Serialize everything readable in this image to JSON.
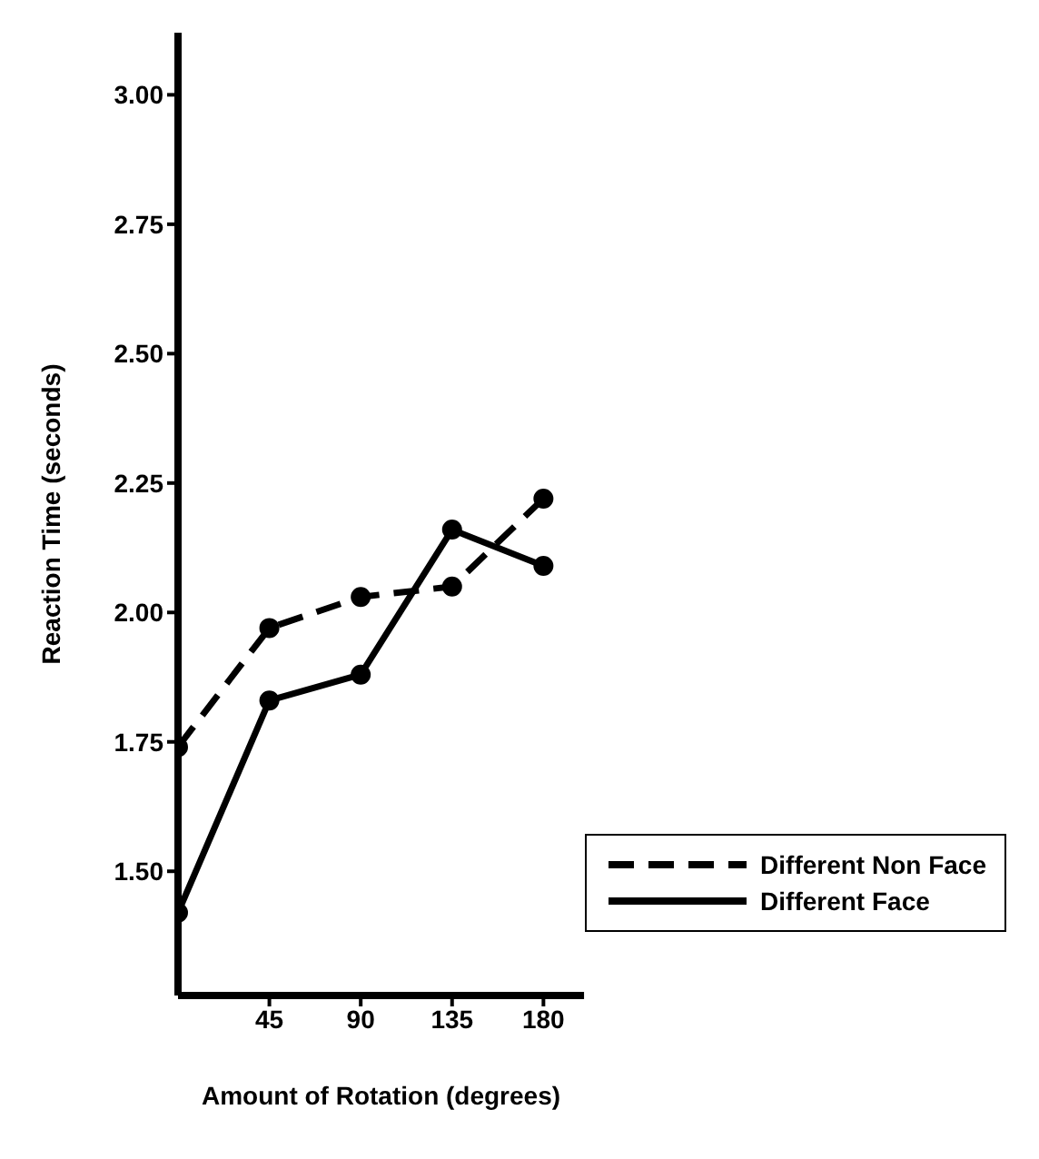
{
  "chart_data": {
    "type": "line",
    "xlabel": "Amount of Rotation (degrees)",
    "ylabel": "Reaction Time (seconds)",
    "x": [
      0,
      45,
      90,
      135,
      180
    ],
    "series": [
      {
        "name": "Different Non Face",
        "color": "#000000",
        "line_style": "dashed",
        "values": [
          1.74,
          1.97,
          2.03,
          2.05,
          2.22
        ]
      },
      {
        "name": "Different Face",
        "color": "#000000",
        "line_style": "solid",
        "values": [
          1.42,
          1.83,
          1.88,
          2.16,
          2.09
        ]
      }
    ],
    "xlim": [
      0,
      200
    ],
    "xticks": [
      45,
      90,
      135,
      180
    ],
    "ylim": [
      1.26,
      3.12
    ],
    "yticks": [
      {
        "value": 1.5,
        "label": "1.50"
      },
      1.75,
      {
        "value": 2,
        "label": "2.00"
      },
      2.25,
      {
        "value": 2.5,
        "label": "2.50"
      },
      2.75,
      {
        "value": 3,
        "label": "3.00"
      }
    ],
    "marker": "circle",
    "legend": "bottom right",
    "grid": false
  }
}
